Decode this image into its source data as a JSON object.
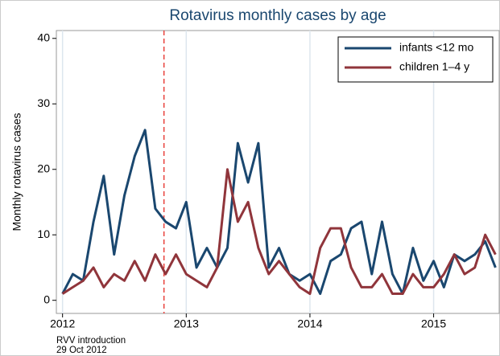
{
  "chart_data": {
    "type": "line",
    "title": "Rotavirus monthly cases by age",
    "y_label": "Monthly rotavirus cases",
    "x": [
      2012,
      2012.083,
      2012.167,
      2012.25,
      2012.333,
      2012.417,
      2012.5,
      2012.583,
      2012.667,
      2012.75,
      2012.833,
      2012.917,
      2013,
      2013.083,
      2013.167,
      2013.25,
      2013.333,
      2013.417,
      2013.5,
      2013.583,
      2013.667,
      2013.75,
      2013.833,
      2013.917,
      2014,
      2014.083,
      2014.167,
      2014.25,
      2014.333,
      2014.417,
      2014.5,
      2014.583,
      2014.667,
      2014.75,
      2014.833,
      2014.917,
      2015,
      2015.083,
      2015.167,
      2015.25,
      2015.333,
      2015.417,
      2015.5
    ],
    "series": [
      {
        "name": "infants <12 mo",
        "color": "#1a476f",
        "values": [
          1,
          4,
          3,
          12,
          19,
          7,
          16,
          22,
          26,
          14,
          12,
          11,
          15,
          5,
          8,
          5,
          8,
          24,
          18,
          24,
          5,
          8,
          4,
          3,
          4,
          1,
          6,
          7,
          11,
          12,
          4,
          12,
          4,
          1,
          8,
          3,
          6,
          2,
          7,
          6,
          7,
          9,
          5
        ]
      },
      {
        "name": "children 1–4 y",
        "color": "#90353b",
        "values": [
          1,
          2,
          3,
          5,
          2,
          4,
          3,
          6,
          3,
          7,
          4,
          7,
          4,
          3,
          2,
          5,
          20,
          12,
          15,
          8,
          4,
          6,
          4,
          2,
          1,
          8,
          11,
          11,
          5,
          2,
          2,
          4,
          1,
          1,
          4,
          2,
          2,
          4,
          7,
          4,
          5,
          10,
          7
        ]
      }
    ],
    "xlim": [
      2011.95,
      2015.53
    ],
    "xticks": [
      2012,
      2013,
      2014,
      2015
    ],
    "ylim": [
      -2,
      41.2
    ],
    "yticks": [
      0,
      10,
      20,
      30,
      40
    ],
    "grid": true,
    "legend": "top-right",
    "annotation": {
      "x": 2012.82,
      "color": "#e8413c",
      "lines": [
        "RVV introduction",
        "29 Oct 2012"
      ]
    }
  }
}
